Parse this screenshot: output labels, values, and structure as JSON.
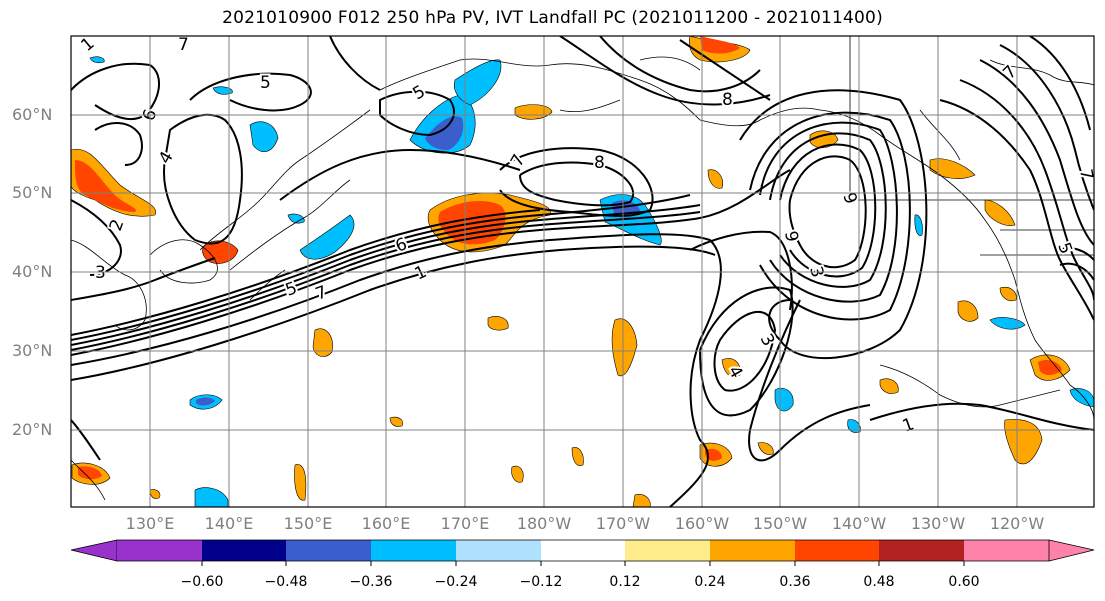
{
  "title": "2021010900 F012 250 hPa PV, IVT Landfall PC (2021011200 - 2021011400)",
  "map": {
    "lat_labels": [
      "60°N",
      "50°N",
      "40°N",
      "30°N",
      "20°N"
    ],
    "lon_labels": [
      "130°E",
      "140°E",
      "150°E",
      "160°E",
      "170°E",
      "180°W",
      "170°W",
      "160°W",
      "150°W",
      "140°W",
      "130°W",
      "120°W"
    ],
    "contour_labels": [
      "1",
      "5",
      "6",
      "7",
      "8",
      "9",
      "3",
      "4",
      "2",
      "7",
      "5",
      "6",
      "8",
      "9",
      "7",
      "1",
      "5",
      "7",
      "3",
      "4",
      "3",
      "1",
      "5",
      "7"
    ],
    "gridline_color": "#808080",
    "coastline_color": "#000000"
  },
  "colorbar": {
    "ticks": [
      "−0.60",
      "−0.48",
      "−0.36",
      "−0.24",
      "−0.12",
      "0.12",
      "0.24",
      "0.36",
      "0.48",
      "0.60"
    ],
    "colors": [
      "#9932cc",
      "#00008b",
      "#3a5fcd",
      "#00bfff",
      "#b0e2ff",
      "#ffffff",
      "#ffec8b",
      "#ffa500",
      "#ff4500",
      "#b22222",
      "#ff82ab"
    ]
  }
}
